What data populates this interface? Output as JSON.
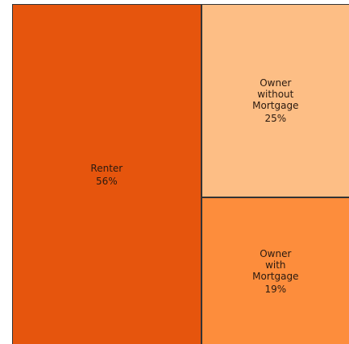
{
  "chart_data": {
    "type": "treemap",
    "categories": [
      "Renter",
      "Owner without Mortgage",
      "Owner with Mortgage"
    ],
    "values": [
      56,
      25,
      19
    ],
    "value_labels": [
      "56%",
      "25%",
      "19%"
    ],
    "colors": [
      "#e6550d",
      "#fdbe85",
      "#fd8d3c"
    ]
  }
}
